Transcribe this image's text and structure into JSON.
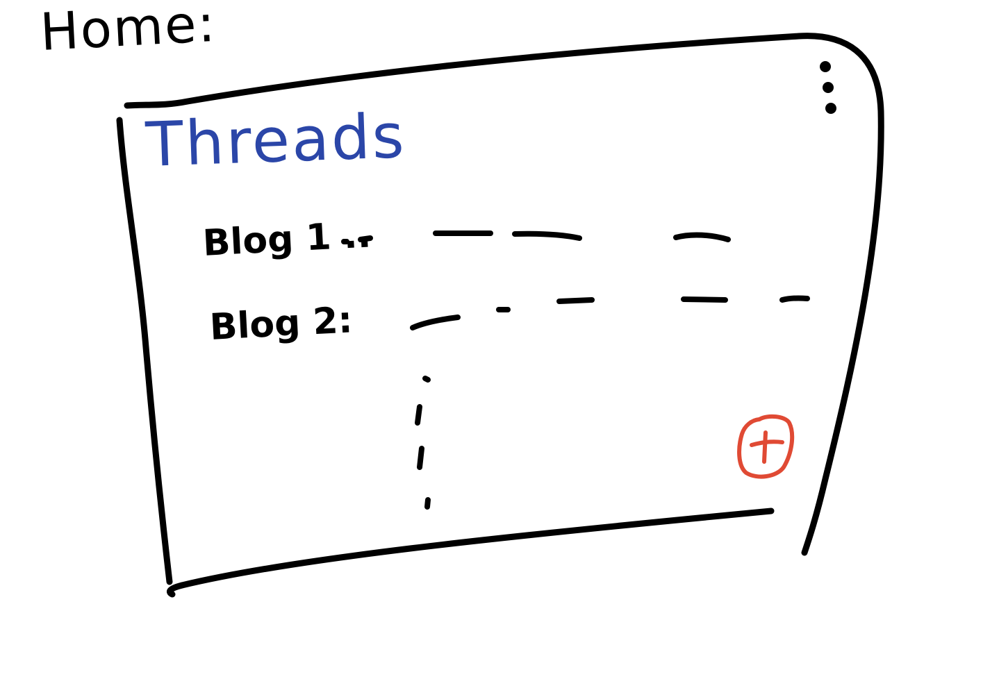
{
  "page": {
    "heading": "Home:"
  },
  "threads": {
    "title": "Threads",
    "items": [
      {
        "label": "Blog 1 .."
      },
      {
        "label": "Blog 2:"
      }
    ]
  },
  "toolbar": {
    "more_icon": "vertical-ellipsis-icon"
  },
  "fab": {
    "icon": "plus-icon",
    "color": "#e04a34"
  },
  "colors": {
    "ink": "#000000",
    "title_blue": "#2b46a8",
    "accent_red": "#e04a34"
  }
}
